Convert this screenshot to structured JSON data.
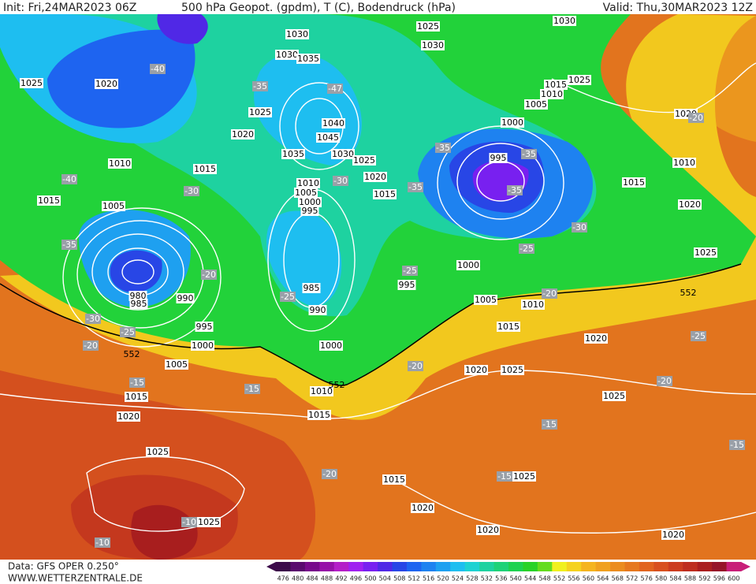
{
  "header": {
    "init": "Init: Fri,24MAR2023 06Z",
    "title": "500 hPa Geopot. (gpdm), T (C), Bodendruck (hPa)",
    "valid": "Valid: Thu,30MAR2023 12Z"
  },
  "isobar_labels": [
    1030,
    1025,
    1030,
    1030,
    1030,
    1035,
    1025,
    1020,
    1025,
    1015,
    1010,
    1005,
    1000,
    1025,
    1040,
    1020,
    1045,
    1035,
    1030,
    1025,
    1020,
    1015,
    1010,
    1005,
    1000,
    995,
    995,
    1010,
    1015,
    1015,
    1005,
    1020,
    1010,
    1015,
    1020,
    1025,
    1000,
    995,
    985,
    990,
    990,
    980,
    985,
    995,
    1000,
    1005,
    1005,
    1010,
    1015,
    1020,
    1000,
    1010,
    1015,
    1020,
    1015,
    1020,
    1025,
    1025,
    1025,
    1015,
    1025,
    1025,
    1020,
    1020,
    1020
  ],
  "temperature_labels": [
    -40,
    -35,
    -47,
    -40,
    -30,
    -30,
    -35,
    -35,
    -35,
    -35,
    -30,
    -25,
    -25,
    -35,
    -20,
    -25,
    -30,
    -25,
    -20,
    -25,
    -20,
    -20,
    -20,
    -15,
    -15,
    -15,
    -15,
    -20,
    -15,
    -10,
    -10,
    -20
  ],
  "height_labels": [
    552,
    552,
    552
  ],
  "colorbar": {
    "values": [
      476,
      480,
      484,
      488,
      492,
      496,
      500,
      504,
      508,
      512,
      516,
      520,
      524,
      528,
      532,
      536,
      540,
      544,
      548,
      552,
      556,
      560,
      564,
      568,
      572,
      576,
      580,
      584,
      588,
      592,
      596,
      600
    ],
    "colors": [
      "#3c0a4a",
      "#5a0a6e",
      "#780a8c",
      "#9610a8",
      "#b41ec8",
      "#a020f0",
      "#7820f0",
      "#5028e6",
      "#2846e6",
      "#1e64f0",
      "#1e82f0",
      "#1ea0f0",
      "#1ebef0",
      "#1ed2d2",
      "#1ed2a0",
      "#1ed278",
      "#1ed250",
      "#28d228",
      "#64dc1e",
      "#f0f01e",
      "#f5d21e",
      "#f5b41e",
      "#f0a01e",
      "#eb8c1e",
      "#e6781e",
      "#e1641e",
      "#d8501e",
      "#cc3c1e",
      "#be2d1e",
      "#aa1e1e",
      "#961428",
      "#c81e78"
    ]
  },
  "footer": {
    "data": "Data: GFS OPER 0.250°",
    "site": "WWW.WETTERZENTRALE.DE"
  }
}
